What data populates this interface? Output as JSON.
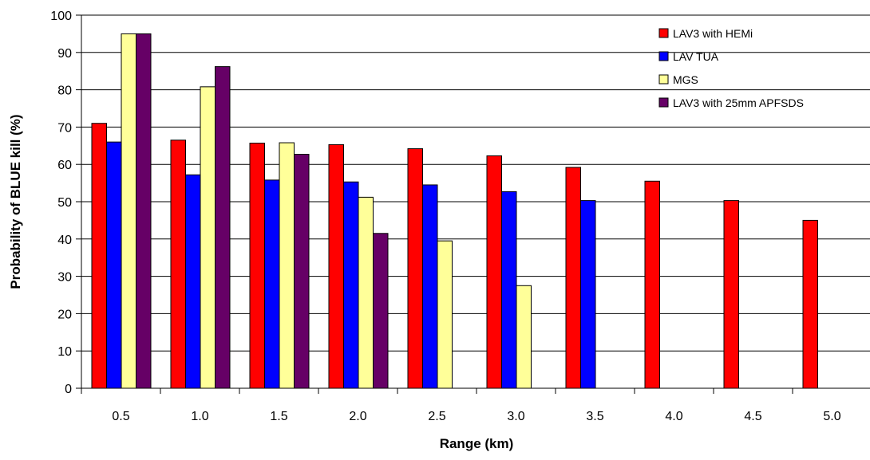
{
  "chart_data": {
    "type": "bar",
    "title": "",
    "xlabel": "Range (km)",
    "ylabel": "Probability of BLUE kill (%)",
    "ylim": [
      0,
      100
    ],
    "yticks": [
      "0",
      "10",
      "20",
      "30",
      "40",
      "50",
      "60",
      "70",
      "80",
      "90",
      "100"
    ],
    "categories": [
      "0.5",
      "1.0",
      "1.5",
      "2.0",
      "2.5",
      "3.0",
      "3.5",
      "4.0",
      "4.5",
      "5.0"
    ],
    "grid": "horizontal",
    "legend_position": "top-right",
    "series": [
      {
        "name": "LAV3 with HEMi",
        "color": "#ff0000",
        "values": [
          71,
          66.5,
          65.7,
          65.3,
          64.2,
          62.3,
          59.2,
          55.5,
          50.3,
          45
        ]
      },
      {
        "name": "LAV TUA",
        "color": "#0000ff",
        "values": [
          66,
          57.2,
          55.8,
          55.3,
          54.5,
          52.7,
          50.3,
          null,
          null,
          null
        ]
      },
      {
        "name": "MGS",
        "color": "#ffff99",
        "values": [
          95,
          80.8,
          65.8,
          51.2,
          39.5,
          27.5,
          null,
          null,
          null,
          null
        ]
      },
      {
        "name": "LAV3 with 25mm APFSDS",
        "color": "#660066",
        "values": [
          95,
          86.2,
          62.7,
          41.5,
          null,
          null,
          null,
          null,
          null,
          null
        ]
      }
    ]
  }
}
